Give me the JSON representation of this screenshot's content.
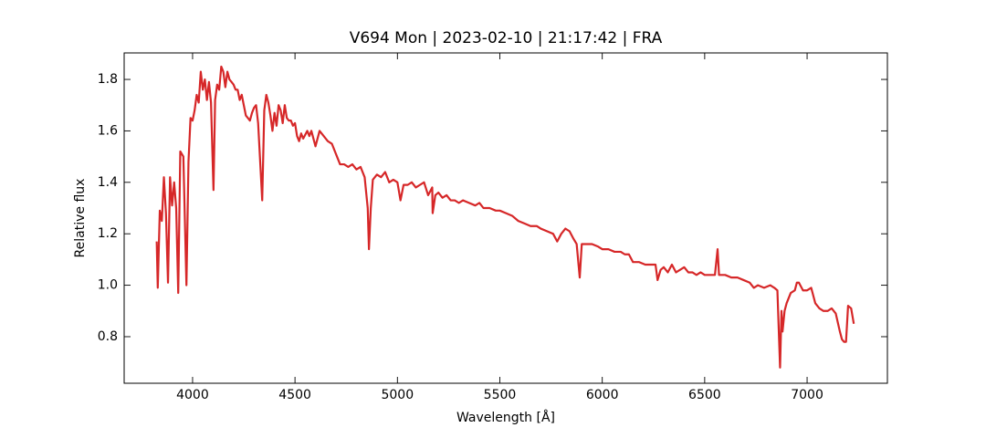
{
  "chart_data": {
    "type": "line",
    "title": "V694 Mon | 2023-02-10 | 21:17:42 | FRA",
    "x_label": "Wavelength [Å]",
    "y_label": "Relative flux",
    "color": "#d62728",
    "xlim": [
      3666,
      7392
    ],
    "ylim": [
      0.619,
      1.903
    ],
    "xticks": [
      4000,
      4500,
      5000,
      5500,
      6000,
      6500,
      7000
    ],
    "yticks": [
      0.8,
      {
        "value": 1,
        "label": "1.0"
      },
      1.2,
      1.4,
      1.6,
      1.8
    ],
    "grid": false,
    "x": [
      3825,
      3830,
      3840,
      3850,
      3860,
      3870,
      3880,
      3890,
      3900,
      3910,
      3920,
      3930,
      3940,
      3955,
      3970,
      3980,
      3990,
      4000,
      4010,
      4020,
      4030,
      4040,
      4050,
      4060,
      4070,
      4080,
      4090,
      4102,
      4110,
      4120,
      4130,
      4140,
      4150,
      4160,
      4170,
      4180,
      4190,
      4200,
      4210,
      4220,
      4230,
      4240,
      4250,
      4260,
      4270,
      4280,
      4290,
      4300,
      4310,
      4320,
      4340,
      4350,
      4360,
      4370,
      4380,
      4390,
      4400,
      4410,
      4420,
      4430,
      4440,
      4450,
      4460,
      4470,
      4480,
      4490,
      4500,
      4510,
      4520,
      4530,
      4540,
      4560,
      4570,
      4580,
      4600,
      4620,
      4640,
      4660,
      4680,
      4700,
      4720,
      4740,
      4760,
      4780,
      4800,
      4820,
      4840,
      4855,
      4861,
      4870,
      4880,
      4900,
      4920,
      4940,
      4960,
      4980,
      5000,
      5015,
      5030,
      5050,
      5070,
      5090,
      5110,
      5130,
      5150,
      5170,
      5172,
      5185,
      5200,
      5220,
      5240,
      5260,
      5280,
      5300,
      5320,
      5350,
      5380,
      5400,
      5420,
      5450,
      5480,
      5500,
      5530,
      5560,
      5590,
      5620,
      5650,
      5680,
      5700,
      5730,
      5760,
      5780,
      5800,
      5820,
      5840,
      5860,
      5875,
      5890,
      5900,
      5920,
      5950,
      5980,
      6000,
      6030,
      6060,
      6090,
      6110,
      6130,
      6150,
      6180,
      6210,
      6240,
      6260,
      6270,
      6285,
      6300,
      6320,
      6340,
      6360,
      6380,
      6400,
      6420,
      6440,
      6460,
      6480,
      6500,
      6520,
      6550,
      6563,
      6570,
      6600,
      6630,
      6660,
      6690,
      6720,
      6740,
      6760,
      6790,
      6820,
      6840,
      6855,
      6868,
      6875,
      6880,
      6890,
      6900,
      6920,
      6940,
      6950,
      6960,
      6980,
      7000,
      7020,
      7030,
      7040,
      7060,
      7080,
      7100,
      7120,
      7140,
      7160,
      7170,
      7180,
      7190,
      7200,
      7215,
      7228
    ],
    "values": [
      1.17,
      0.99,
      1.29,
      1.25,
      1.42,
      1.28,
      1.01,
      1.42,
      1.31,
      1.4,
      1.3,
      0.97,
      1.52,
      1.5,
      1.0,
      1.48,
      1.65,
      1.64,
      1.68,
      1.74,
      1.71,
      1.83,
      1.76,
      1.8,
      1.72,
      1.79,
      1.71,
      1.37,
      1.72,
      1.78,
      1.76,
      1.85,
      1.83,
      1.77,
      1.83,
      1.8,
      1.79,
      1.78,
      1.76,
      1.76,
      1.72,
      1.74,
      1.7,
      1.66,
      1.65,
      1.64,
      1.67,
      1.69,
      1.7,
      1.63,
      1.33,
      1.68,
      1.74,
      1.71,
      1.66,
      1.6,
      1.67,
      1.62,
      1.7,
      1.68,
      1.63,
      1.7,
      1.65,
      1.64,
      1.64,
      1.62,
      1.63,
      1.58,
      1.56,
      1.59,
      1.57,
      1.6,
      1.58,
      1.6,
      1.54,
      1.6,
      1.58,
      1.56,
      1.55,
      1.51,
      1.47,
      1.47,
      1.46,
      1.47,
      1.45,
      1.46,
      1.42,
      1.3,
      1.14,
      1.3,
      1.41,
      1.43,
      1.42,
      1.44,
      1.4,
      1.41,
      1.4,
      1.33,
      1.39,
      1.39,
      1.4,
      1.38,
      1.39,
      1.4,
      1.35,
      1.38,
      1.28,
      1.35,
      1.36,
      1.34,
      1.35,
      1.33,
      1.33,
      1.32,
      1.33,
      1.32,
      1.31,
      1.32,
      1.3,
      1.3,
      1.29,
      1.29,
      1.28,
      1.27,
      1.25,
      1.24,
      1.23,
      1.23,
      1.22,
      1.21,
      1.2,
      1.17,
      1.2,
      1.22,
      1.21,
      1.18,
      1.16,
      1.03,
      1.16,
      1.16,
      1.16,
      1.15,
      1.14,
      1.14,
      1.13,
      1.13,
      1.12,
      1.12,
      1.09,
      1.09,
      1.08,
      1.08,
      1.08,
      1.02,
      1.06,
      1.07,
      1.05,
      1.08,
      1.05,
      1.06,
      1.07,
      1.05,
      1.05,
      1.04,
      1.05,
      1.04,
      1.04,
      1.04,
      1.14,
      1.04,
      1.04,
      1.03,
      1.03,
      1.02,
      1.01,
      0.99,
      1.0,
      0.99,
      1.0,
      0.99,
      0.98,
      0.68,
      0.9,
      0.82,
      0.9,
      0.93,
      0.97,
      0.98,
      1.01,
      1.01,
      0.98,
      0.98,
      0.99,
      0.96,
      0.93,
      0.91,
      0.9,
      0.9,
      0.91,
      0.89,
      0.82,
      0.79,
      0.78,
      0.78,
      0.92,
      0.91,
      0.85
    ]
  }
}
